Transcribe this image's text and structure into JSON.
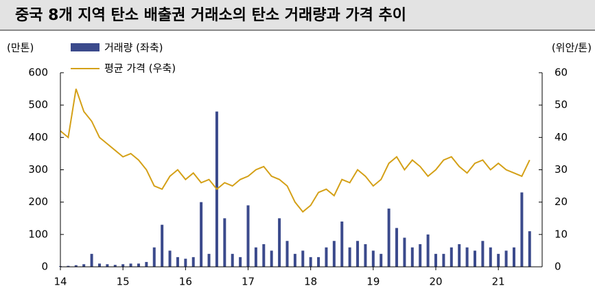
{
  "chart_data": {
    "type": "combo",
    "title": "중국 8개 지역 탄소 배출권 거래소의 탄소 거래량과 가격 추이",
    "y_label": "(만톤)",
    "y2_label": "(위안/톤)",
    "x": [
      14.0,
      14.125,
      14.25,
      14.375,
      14.5,
      14.625,
      14.75,
      14.875,
      15.0,
      15.125,
      15.25,
      15.375,
      15.5,
      15.625,
      15.75,
      15.875,
      16.0,
      16.125,
      16.25,
      16.375,
      16.5,
      16.625,
      16.75,
      16.875,
      17.0,
      17.125,
      17.25,
      17.375,
      17.5,
      17.625,
      17.75,
      17.875,
      18.0,
      18.125,
      18.25,
      18.375,
      18.5,
      18.625,
      18.75,
      18.875,
      19.0,
      19.125,
      19.25,
      19.375,
      19.5,
      19.625,
      19.75,
      19.875,
      20.0,
      20.125,
      20.25,
      20.375,
      20.5,
      20.625,
      20.75,
      20.875,
      21.0,
      21.125,
      21.25,
      21.375,
      21.5
    ],
    "series": [
      {
        "name": "거래량 (좌축)",
        "color": "#3b4a8c",
        "type": "bar",
        "values": [
          2,
          3,
          5,
          8,
          40,
          10,
          8,
          6,
          8,
          10,
          10,
          15,
          60,
          130,
          50,
          30,
          25,
          30,
          200,
          40,
          480,
          150,
          40,
          30,
          190,
          60,
          70,
          50,
          150,
          80,
          40,
          50,
          30,
          30,
          60,
          80,
          140,
          60,
          80,
          70,
          50,
          40,
          180,
          120,
          90,
          60,
          70,
          100,
          40,
          40,
          60,
          70,
          60,
          50,
          80,
          60,
          40,
          50,
          60,
          230,
          110
        ]
      },
      {
        "name": "평균 가격 (우축)",
        "color": "#d4a017",
        "type": "line",
        "axis": "y2",
        "values": [
          42,
          40,
          55,
          48,
          45,
          40,
          38,
          36,
          34,
          35,
          33,
          30,
          25,
          24,
          28,
          30,
          27,
          29,
          26,
          27,
          24,
          26,
          25,
          27,
          28,
          30,
          31,
          28,
          27,
          25,
          20,
          17,
          19,
          23,
          24,
          22,
          27,
          26,
          30,
          28,
          25,
          27,
          32,
          34,
          30,
          33,
          31,
          28,
          30,
          33,
          34,
          31,
          29,
          32,
          33,
          30,
          32,
          30,
          29,
          28,
          33
        ]
      }
    ],
    "xlim": [
      14,
      21.7
    ],
    "xticks": [
      14,
      15,
      16,
      17,
      18,
      19,
      20,
      21
    ],
    "ylim": [
      0,
      600
    ],
    "yticks": [
      0,
      100,
      200,
      300,
      400,
      500,
      600
    ],
    "y2lim": [
      0,
      60
    ],
    "y2ticks": [
      0,
      10,
      20,
      30,
      40,
      50,
      60
    ]
  }
}
